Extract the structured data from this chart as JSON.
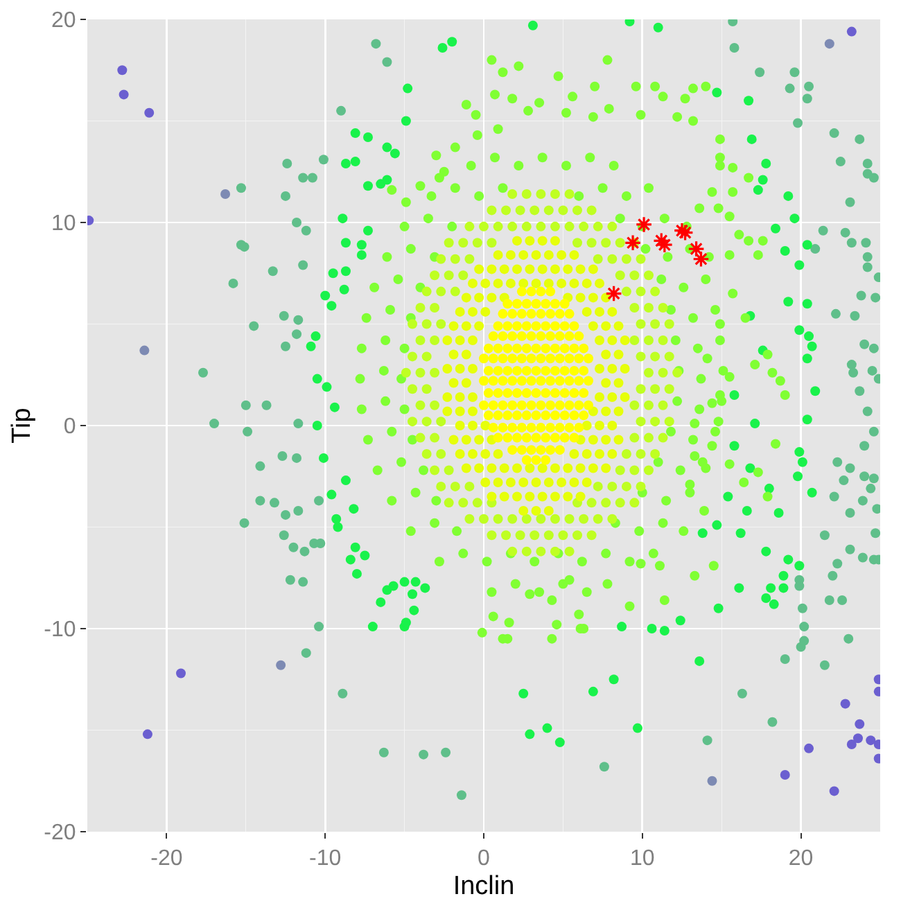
{
  "chart_data": {
    "type": "scatter",
    "xlabel": "Inclin",
    "ylabel": "Tip",
    "xlim": [
      -25,
      25
    ],
    "ylim": [
      -20,
      20
    ],
    "xticks": [
      -20,
      -10,
      0,
      10,
      20
    ],
    "yticks": [
      -20,
      -10,
      0,
      10,
      20
    ],
    "grid": true,
    "marker": "circle",
    "series": [
      {
        "color": "#5fbf8a",
        "x": [
          -6.8,
          -6.1,
          -9.0,
          -12.4,
          -11.4,
          -10.8,
          -10.1,
          -15.3,
          -12.5,
          -11.8,
          -11.2,
          -15.3,
          -15.1,
          -13.3,
          -11.4,
          -15.8,
          -14.5,
          -12.6,
          -11.7,
          -11.8,
          -12.5,
          -17.7,
          -15.0,
          -13.7,
          -17.0,
          -14.9,
          -11.7,
          -14.1,
          -12.7,
          -11.8,
          -14.1,
          -13.2,
          -12.5,
          -11.7,
          -15.1,
          -12.6,
          -12.0,
          -11.3,
          -10.7,
          -10.3,
          -10.4,
          -12.2,
          -11.4,
          -10.4,
          -11.2,
          -8.9,
          -6.3,
          -3.8,
          -2.4,
          -1.4,
          16.3,
          18.2,
          14.1,
          7.6,
          21.5,
          23.0,
          19.0,
          20.0,
          20.2,
          20.2,
          20.1,
          21.8,
          22.6,
          22.0,
          22.3,
          19.9,
          19.9,
          24.6,
          24.9,
          23.9,
          17.4,
          19.6,
          19.3,
          20.5,
          20.4,
          19.8,
          22.1,
          23.7,
          22.5,
          24.2,
          24.2,
          24.6,
          23.1,
          22.8,
          23.2,
          24.1,
          24.2,
          24.2,
          24.9,
          21.4,
          20.9,
          15.8,
          15.7,
          24.0,
          24.6,
          23.2,
          23.3,
          24.5,
          24.9,
          22.2,
          23.4,
          23.8,
          24.7,
          23.7,
          24.2,
          24.6,
          24.0,
          22.3,
          23.1,
          22.7,
          24.0,
          24.4,
          22.1,
          23.1,
          23.9,
          24.6,
          24.8,
          21.5,
          23.1,
          24.7
        ],
        "values": [
          18.8,
          17.9,
          15.5,
          12.9,
          12.2,
          12.2,
          13.1,
          11.7,
          11.3,
          10.0,
          9.6,
          8.9,
          8.8,
          7.6,
          7.9,
          7.0,
          4.9,
          5.4,
          5.2,
          4.5,
          3.9,
          2.6,
          1.0,
          1.0,
          0.1,
          -0.3,
          0.1,
          -2.0,
          -1.5,
          -1.6,
          -3.7,
          -3.8,
          -4.4,
          -4.2,
          -4.8,
          -5.4,
          -6.0,
          -6.2,
          -5.8,
          -5.8,
          -3.7,
          -7.6,
          -7.7,
          -9.9,
          -11.2,
          -13.2,
          -16.1,
          -16.2,
          -16.1,
          -18.2,
          -13.2,
          -14.6,
          -15.5,
          -16.8,
          -11.8,
          -10.5,
          -11.5,
          -10.9,
          -10.6,
          -9.9,
          -9.0,
          -8.6,
          -8.6,
          -7.4,
          -6.8,
          -7.6,
          -7.9,
          -6.6,
          -6.6,
          -6.5,
          17.4,
          17.4,
          16.6,
          16.7,
          16.1,
          14.9,
          14.4,
          14.1,
          13.0,
          12.9,
          12.4,
          12.2,
          11.0,
          9.5,
          9.0,
          9.0,
          8.3,
          7.8,
          7.3,
          9.6,
          8.7,
          18.6,
          19.9,
          4.0,
          3.8,
          3.0,
          2.6,
          2.7,
          2.3,
          5.5,
          5.4,
          6.4,
          6.3,
          1.7,
          0.7,
          -0.3,
          -1.0,
          -1.8,
          -2.1,
          -2.7,
          -2.5,
          -3.1,
          -3.5,
          -4.3,
          -3.7,
          -2.6,
          -4.1,
          -5.4,
          -6.1,
          -5.3
        ]
      },
      {
        "color": "#7d8ab3",
        "x": [
          -21.4,
          -12.8,
          14.4,
          21.8,
          -16.3
        ],
        "values": [
          3.7,
          -11.8,
          -17.5,
          18.8,
          11.4
        ]
      },
      {
        "color": "#6b5fd0",
        "x": [
          -22.8,
          -22.7,
          -21.1,
          -24.9,
          -19.1,
          -21.2,
          22.8,
          23.7,
          23.2,
          23.6,
          24.4,
          24.9,
          20.5,
          19.0,
          22.1,
          23.2,
          24.9,
          24.9,
          24.9
        ],
        "values": [
          17.5,
          16.3,
          15.4,
          10.1,
          -12.2,
          -15.2,
          -13.7,
          -14.7,
          -15.7,
          -15.4,
          -15.5,
          -16.4,
          -15.9,
          -17.2,
          -18.0,
          19.4,
          -12.5,
          -13.1,
          -15.7
        ]
      },
      {
        "color": "#19f24b",
        "x": [
          -2.6,
          -2.0,
          -4.8,
          -4.9,
          -8.1,
          -7.3,
          -6.1,
          -5.6,
          -8.7,
          -8.1,
          -8.9,
          -8.7,
          -7.7,
          -7.7,
          -9.5,
          -8.7,
          -7.3,
          -6.5,
          -6.1,
          -7.3,
          -10.0,
          -9.6,
          -8.8,
          -10.6,
          -10.9,
          -10.5,
          -9.9,
          -10.5,
          -10.1,
          -9.4,
          -9.6,
          -9.3,
          -9.2,
          -8.2,
          -8.1,
          -7.5,
          -8.7,
          -8.4,
          -8.0,
          -6.5,
          -6.1,
          -5.7,
          -5.0,
          -4.5,
          -4.3,
          -4.4,
          -7.0,
          -5.0,
          -4.9,
          -3.7,
          2.5,
          4.0,
          2.9,
          4.8,
          6.9,
          8.2,
          9.7,
          13.6,
          14.8,
          12.4,
          11.4,
          10.6,
          8.7,
          16.1,
          17.8,
          18.1,
          18.3,
          18.9,
          18.9,
          19.2,
          19.9,
          14.7,
          16.9,
          17.8,
          17.6,
          19.2,
          19.6,
          18.4,
          19.0,
          19.9,
          9.2,
          11.0,
          3.1,
          16.7,
          17.3,
          20.4,
          20.4,
          19.2,
          20.5,
          19.9,
          20.7,
          20.4,
          20.9,
          20.4,
          19.9,
          20.1,
          19.8,
          20.7,
          17.8,
          18.6,
          16.8,
          17.6,
          15.8,
          17.1,
          15.8,
          16.8,
          18.0,
          16.6,
          15.4,
          14.7,
          16.2,
          13.8
        ],
        "values": [
          18.6,
          18.9,
          16.6,
          15.0,
          14.4,
          14.2,
          13.7,
          13.4,
          12.9,
          13.0,
          10.2,
          9.0,
          8.9,
          8.4,
          7.5,
          7.6,
          11.8,
          11.9,
          12.1,
          9.6,
          6.4,
          5.9,
          6.7,
          4.4,
          3.9,
          2.3,
          1.9,
          0.0,
          -1.6,
          0.9,
          -3.4,
          -4.6,
          -5.0,
          -4.1,
          -6.0,
          -6.4,
          -2.7,
          -6.6,
          -7.3,
          -8.7,
          -8.1,
          -7.9,
          -7.7,
          -8.3,
          -7.7,
          -9.1,
          -9.9,
          -9.9,
          -9.7,
          -8.0,
          -13.2,
          -14.9,
          -15.2,
          -15.6,
          -13.1,
          -12.5,
          -14.9,
          -11.6,
          -9.0,
          -9.6,
          -10.1,
          -10.0,
          -9.9,
          -8.0,
          -8.5,
          -8.0,
          -8.8,
          -8.0,
          -7.4,
          -6.6,
          -6.9,
          16.4,
          14.1,
          12.9,
          12.1,
          11.3,
          10.2,
          9.7,
          8.6,
          7.9,
          19.9,
          19.6,
          19.7,
          16.0,
          11.6,
          8.9,
          6.0,
          6.1,
          4.4,
          4.7,
          3.9,
          3.3,
          1.7,
          0.3,
          -1.3,
          -1.8,
          -2.5,
          -3.3,
          -6.2,
          -4.3,
          5.4,
          3.7,
          1.5,
          0.1,
          -1.0,
          -2.1,
          -3.1,
          -4.2,
          -3.5,
          -4.9,
          -5.3,
          -5.3
        ]
      },
      {
        "color": "#80ff33",
        "x": [
          0.5,
          2.0,
          3.5,
          5.0,
          6.5,
          7.8,
          -2.8,
          -1.3,
          0.2,
          1.7,
          3.2,
          4.7,
          6.2,
          7.7,
          9.2,
          10.7,
          -4.6,
          -3.1,
          -1.7,
          8.3,
          9.8,
          11.3,
          12.6,
          -5.8,
          -4.3,
          -3.0,
          10.0,
          11.5,
          13.0,
          -6.7,
          -5.2,
          -3.8,
          11.0,
          12.4,
          13.8,
          -7.3,
          -5.8,
          -4.5,
          11.8,
          13.2,
          14.6,
          -7.7,
          -6.2,
          -5.0,
          12.2,
          13.6,
          15.0,
          -7.8,
          -6.3,
          -5.2,
          12.3,
          13.7,
          15.1,
          -7.7,
          -6.2,
          -5.0,
          12.1,
          13.5,
          14.9,
          -7.4,
          -5.9,
          -4.6,
          11.8,
          13.2,
          14.6,
          -6.9,
          -5.4,
          -4.0,
          11.2,
          12.6,
          14.0,
          -6.1,
          -4.6,
          -3.1,
          10.2,
          11.6,
          13.0,
          14.2,
          -5.0,
          -3.5,
          -2.0,
          8.6,
          10.0,
          11.4,
          12.8,
          -3.3,
          -1.8,
          -0.3,
          1.2,
          6.0,
          7.5,
          9.0,
          10.4,
          -0.8,
          0.7,
          2.2,
          3.7,
          5.2,
          6.7,
          8.2,
          0.5,
          2.2,
          1.2,
          7.8,
          4.7,
          7.0,
          9.6,
          10.8,
          13.2,
          14.0,
          0.7,
          1.8,
          3.5,
          5.6,
          12.7,
          11.3,
          2.8,
          5.2,
          7.9,
          9.9,
          12.2,
          0.9,
          6.9,
          14.9,
          14.9,
          15.7,
          -1.1,
          -0.5,
          -0.4,
          -1.8,
          -3.0,
          -2.5,
          -2.8,
          -4.9,
          -4.0,
          -5.8,
          14.1,
          15.5,
          14.9,
          14.4,
          14.8,
          13.3,
          14.4,
          13.3,
          14.0,
          13.0,
          13.9,
          15.7,
          14.9,
          16.5,
          17.9,
          17.1,
          18.2,
          18.7,
          19.0,
          18.4,
          17.3,
          16.4,
          15.5,
          17.9,
          13.2,
          14.9,
          15.7,
          16.7,
          14.4,
          13.6,
          14.8,
          15.5,
          16.1,
          16.7,
          17.6,
          15.5,
          17.3,
          1.2,
          1.5,
          4.3,
          6.1,
          6.3,
          0.6,
          1.6,
          4.6,
          6.0,
          -0.1,
          9.9,
          11.1,
          11.4,
          13.3,
          14.5,
          9.2,
          5.4,
          2.9,
          4.3
        ],
        "values": [
          -8.2,
          -7.8,
          -8.2,
          -7.8,
          -8.2,
          -7.8,
          -6.7,
          -6.3,
          -6.7,
          -6.3,
          -6.7,
          -6.3,
          -6.7,
          -6.3,
          -6.7,
          -6.3,
          -5.2,
          -4.8,
          -5.2,
          -4.8,
          -5.2,
          -4.8,
          -5.2,
          -3.7,
          -3.3,
          -3.7,
          -3.3,
          -3.7,
          -3.3,
          -2.2,
          -1.8,
          -2.2,
          -1.8,
          -2.2,
          -1.8,
          -0.7,
          -0.3,
          -0.7,
          -0.3,
          -0.7,
          -0.3,
          0.8,
          1.2,
          0.8,
          1.2,
          0.8,
          1.2,
          2.3,
          2.7,
          2.3,
          2.7,
          2.3,
          2.7,
          3.8,
          4.2,
          3.8,
          4.2,
          3.8,
          4.2,
          5.3,
          5.7,
          5.3,
          5.7,
          5.3,
          5.7,
          6.8,
          7.2,
          6.8,
          7.2,
          6.8,
          7.2,
          8.3,
          8.7,
          8.3,
          8.7,
          8.3,
          8.7,
          8.3,
          9.8,
          10.2,
          9.8,
          10.2,
          9.8,
          10.2,
          9.8,
          11.3,
          11.7,
          11.3,
          11.7,
          11.3,
          11.7,
          11.3,
          11.7,
          12.8,
          13.2,
          12.8,
          13.2,
          12.8,
          13.2,
          12.8,
          18.0,
          17.7,
          17.4,
          18.0,
          17.2,
          16.7,
          16.7,
          16.7,
          16.6,
          16.7,
          16.3,
          16.1,
          15.9,
          16.2,
          16.1,
          16.2,
          15.5,
          15.4,
          15.6,
          15.3,
          15.2,
          14.6,
          15.2,
          14.1,
          13.2,
          12.7,
          15.8,
          15.3,
          14.3,
          13.7,
          13.3,
          12.5,
          12.2,
          11.0,
          11.8,
          11.6,
          3.3,
          2.4,
          1.5,
          1.1,
          0.2,
          0.1,
          -1.0,
          -1.5,
          -2.1,
          -2.9,
          -4.2,
          6.5,
          5.0,
          5.3,
          3.5,
          3.0,
          2.6,
          2.2,
          1.5,
          -0.9,
          -2.3,
          -2.8,
          -1.9,
          -3.5,
          15.0,
          12.8,
          11.5,
          12.2,
          11.5,
          10.7,
          10.7,
          10.3,
          9.4,
          9.1,
          9.1,
          8.4,
          8.4,
          -10.5,
          -10.5,
          -10.5,
          -10.0,
          -10.0,
          -9.4,
          -9.7,
          -9.8,
          -9.3,
          -10.2,
          -6.8,
          -6.9,
          -8.6,
          -7.4,
          -6.9,
          -8.9,
          -7.6,
          -8.3,
          -8.6
        ]
      },
      {
        "color": "#bfff22",
        "x": [
          1.8,
          2.7,
          3.6,
          4.5,
          5.4,
          0.5,
          1.4,
          2.3,
          3.2,
          4.1,
          5.0,
          5.9,
          6.8,
          -0.9,
          0.0,
          0.9,
          1.8,
          2.7,
          3.6,
          4.5,
          5.4,
          6.3,
          7.2,
          8.1,
          -2.2,
          -1.3,
          -0.4,
          0.5,
          5.9,
          6.8,
          7.7,
          8.6,
          9.5,
          -2.7,
          -1.8,
          -0.9,
          7.2,
          8.1,
          9.0,
          9.9,
          -3.1,
          -2.2,
          8.6,
          9.5,
          10.4,
          -3.6,
          -2.7,
          9.0,
          9.9,
          10.8,
          -4.0,
          -3.1,
          9.5,
          10.4,
          11.3,
          -4.5,
          -3.6,
          -2.7,
          9.9,
          10.8,
          11.7,
          -4.0,
          -3.1,
          9.5,
          10.4,
          11.3,
          -4.5,
          -3.6,
          9.9,
          10.8,
          11.7,
          -4.9,
          -4.0,
          -3.1,
          10.4,
          11.3,
          12.2,
          -4.5,
          -3.6,
          9.9,
          10.8,
          11.7,
          -4.0,
          -3.1,
          9.5,
          10.4,
          11.3,
          -4.5,
          -3.6,
          -2.7,
          9.9,
          10.8,
          11.7,
          -4.0,
          -3.1,
          9.5,
          10.4,
          11.3,
          -3.6,
          -2.7,
          -1.8,
          9.0,
          9.9,
          10.8,
          -3.1,
          -2.2,
          -1.3,
          8.6,
          9.5,
          10.4,
          -2.7,
          -1.8,
          -0.9,
          7.2,
          8.1,
          9.0,
          9.9,
          -2.2,
          -1.3,
          -0.4,
          0.5,
          5.9,
          6.8,
          7.7,
          8.6,
          9.5,
          -0.9,
          0.0,
          0.9,
          1.8,
          2.7,
          3.6,
          4.5,
          5.4,
          6.3,
          7.2,
          8.1,
          0.5,
          1.4,
          2.3,
          3.2,
          4.1,
          5.0,
          5.9,
          6.8,
          1.8,
          2.7,
          3.6,
          4.5,
          5.4
        ],
        "values": [
          -6.2,
          -6.2,
          -6.2,
          -6.2,
          -6.2,
          -5.4,
          -5.4,
          -5.4,
          -5.4,
          -5.4,
          -5.4,
          -5.4,
          -5.4,
          -4.6,
          -4.6,
          -4.6,
          -4.6,
          -4.6,
          -4.6,
          -4.6,
          -4.6,
          -4.6,
          -4.6,
          -4.6,
          -3.8,
          -3.8,
          -3.8,
          -3.8,
          -3.8,
          -3.8,
          -3.8,
          -3.8,
          -3.8,
          -3.0,
          -3.0,
          -3.0,
          -3.0,
          -3.0,
          -3.0,
          -3.0,
          -2.2,
          -2.2,
          -2.2,
          -2.2,
          -2.2,
          -1.4,
          -1.4,
          -1.4,
          -1.4,
          -1.4,
          -0.6,
          -0.6,
          -0.6,
          -0.6,
          -0.6,
          0.2,
          0.2,
          0.2,
          0.2,
          0.2,
          0.2,
          1.0,
          1.0,
          1.0,
          1.0,
          1.0,
          1.8,
          1.8,
          1.8,
          1.8,
          1.8,
          2.6,
          2.6,
          2.6,
          2.6,
          2.6,
          2.6,
          3.4,
          3.4,
          3.4,
          3.4,
          3.4,
          4.2,
          4.2,
          4.2,
          4.2,
          4.2,
          5.0,
          5.0,
          5.0,
          5.0,
          5.0,
          5.0,
          5.8,
          5.8,
          5.8,
          5.8,
          5.8,
          6.6,
          6.6,
          6.6,
          6.6,
          6.6,
          6.6,
          7.4,
          7.4,
          7.4,
          7.4,
          7.4,
          7.4,
          8.2,
          8.2,
          8.2,
          8.2,
          8.2,
          8.2,
          8.2,
          9.0,
          9.0,
          9.0,
          9.0,
          9.0,
          9.0,
          9.0,
          9.0,
          9.0,
          9.8,
          9.8,
          9.8,
          9.8,
          9.8,
          9.8,
          9.8,
          9.8,
          9.8,
          9.8,
          9.8,
          10.6,
          10.6,
          10.6,
          10.6,
          10.6,
          10.6,
          10.6,
          10.6,
          11.4,
          11.4,
          11.4,
          11.4,
          11.4
        ]
      },
      {
        "color": "#e6ff0a",
        "x": [
          2.5,
          3.3,
          4.1,
          0.5,
          1.3,
          2.1,
          2.9,
          3.7,
          4.5,
          5.3,
          6.1,
          0.1,
          0.9,
          1.7,
          2.5,
          3.3,
          4.1,
          4.9,
          5.7,
          6.5,
          -1.1,
          -0.3,
          0.5,
          1.3,
          2.1,
          2.9,
          3.7,
          4.5,
          5.3,
          6.1,
          6.9,
          7.7,
          -1.5,
          -0.7,
          0.1,
          0.9,
          5.7,
          6.5,
          7.3,
          8.1,
          -1.9,
          -1.1,
          -0.3,
          0.5,
          6.1,
          6.9,
          7.7,
          8.5,
          -1.5,
          -0.7,
          0.1,
          6.5,
          7.3,
          8.1,
          -2.3,
          -1.5,
          -0.7,
          6.9,
          7.7,
          8.5,
          -2.3,
          -1.5,
          -0.7,
          7.3,
          8.1,
          8.9,
          -1.9,
          -1.1,
          7.7,
          8.5,
          -2.3,
          -1.5,
          -0.7,
          7.3,
          8.1,
          8.9,
          -1.9,
          -1.1,
          7.7,
          8.5,
          -2.3,
          -1.5,
          -0.7,
          7.3,
          8.1,
          8.9,
          -1.9,
          -1.1,
          -0.3,
          6.9,
          7.7,
          8.5,
          -1.5,
          -0.7,
          0.1,
          6.5,
          7.3,
          8.1,
          -1.1,
          -0.3,
          0.5,
          1.3,
          5.3,
          6.1,
          6.9,
          7.7,
          -0.7,
          0.1,
          0.9,
          1.7,
          2.5,
          3.3,
          4.1,
          4.9,
          5.7,
          6.5,
          7.3,
          -0.3,
          0.5,
          1.3,
          2.1,
          2.9,
          3.7,
          4.5,
          5.3,
          6.1,
          6.9,
          0.9,
          1.7,
          2.5,
          3.3,
          4.1,
          4.9,
          5.7,
          2.1,
          2.9,
          3.7,
          4.5
        ],
        "values": [
          -4.2,
          -4.2,
          -4.2,
          -3.5,
          -3.5,
          -3.5,
          -3.5,
          -3.5,
          -3.5,
          -3.5,
          -3.5,
          -2.8,
          -2.8,
          -2.8,
          -2.8,
          -2.8,
          -2.8,
          -2.8,
          -2.8,
          -2.8,
          -2.1,
          -2.1,
          -2.1,
          -2.1,
          -2.1,
          -2.1,
          -2.1,
          -2.1,
          -2.1,
          -2.1,
          -2.1,
          -2.1,
          -1.4,
          -1.4,
          -1.4,
          -1.4,
          -1.4,
          -1.4,
          -1.4,
          -1.4,
          -0.7,
          -0.7,
          -0.7,
          -0.7,
          -0.7,
          -0.7,
          -0.7,
          -0.7,
          0.0,
          0.0,
          0.0,
          0.0,
          0.0,
          0.0,
          0.7,
          0.7,
          0.7,
          0.7,
          0.7,
          0.7,
          1.4,
          1.4,
          1.4,
          1.4,
          1.4,
          1.4,
          2.1,
          2.1,
          2.1,
          2.1,
          2.8,
          2.8,
          2.8,
          2.8,
          2.8,
          2.8,
          3.5,
          3.5,
          3.5,
          3.5,
          4.2,
          4.2,
          4.2,
          4.2,
          4.2,
          4.2,
          4.9,
          4.9,
          4.9,
          4.9,
          4.9,
          4.9,
          5.6,
          5.6,
          5.6,
          5.6,
          5.6,
          5.6,
          6.3,
          6.3,
          6.3,
          6.3,
          6.3,
          6.3,
          6.3,
          6.3,
          7.0,
          7.0,
          7.0,
          7.0,
          7.0,
          7.0,
          7.0,
          7.0,
          7.0,
          7.0,
          7.0,
          7.7,
          7.7,
          7.7,
          7.7,
          7.7,
          7.7,
          7.7,
          7.7,
          7.7,
          7.7,
          8.4,
          8.4,
          8.4,
          8.4,
          8.4,
          8.4,
          8.4,
          9.1,
          9.1,
          9.1,
          9.1
        ]
      },
      {
        "color": "#ffff00",
        "x": [
          2.7,
          3.3,
          3.9,
          1.8,
          2.4,
          3.0,
          3.6,
          4.2,
          4.8,
          0.9,
          1.5,
          2.1,
          2.7,
          3.3,
          3.9,
          4.5,
          5.1,
          5.7,
          0.6,
          1.2,
          1.8,
          2.4,
          3.0,
          3.6,
          4.2,
          4.8,
          5.4,
          6.0,
          0.3,
          0.9,
          1.5,
          2.1,
          2.7,
          3.3,
          3.9,
          4.5,
          5.1,
          5.7,
          6.3,
          0.0,
          0.6,
          1.2,
          1.8,
          2.4,
          3.0,
          3.6,
          4.2,
          4.8,
          5.4,
          6.0,
          6.6,
          0.3,
          0.9,
          1.5,
          2.1,
          2.7,
          3.3,
          3.9,
          4.5,
          5.1,
          5.7,
          6.3,
          0.0,
          0.6,
          1.2,
          1.8,
          2.4,
          3.0,
          3.6,
          4.2,
          4.8,
          5.4,
          6.0,
          6.6,
          0.3,
          0.9,
          1.5,
          2.1,
          2.7,
          3.3,
          3.9,
          4.5,
          5.1,
          5.7,
          6.3,
          0.0,
          0.6,
          1.2,
          1.8,
          2.4,
          3.0,
          3.6,
          4.2,
          4.8,
          5.4,
          6.0,
          6.6,
          0.3,
          0.9,
          1.5,
          2.1,
          2.7,
          3.3,
          3.9,
          4.5,
          5.1,
          5.7,
          6.3,
          0.6,
          1.2,
          1.8,
          2.4,
          3.0,
          3.6,
          4.2,
          4.8,
          5.4,
          6.0,
          0.9,
          1.5,
          2.1,
          2.7,
          3.3,
          3.9,
          4.5,
          5.1,
          5.7,
          1.2,
          1.8,
          2.4,
          3.0,
          3.6,
          4.2,
          4.8,
          5.4,
          1.5,
          2.1,
          2.7,
          3.3,
          3.9,
          4.5,
          5.1,
          2.4,
          3.0,
          3.6,
          4.2
        ],
        "values": [
          -1.7,
          -1.7,
          -1.7,
          -1.2,
          -1.2,
          -1.2,
          -1.2,
          -1.2,
          -1.2,
          -0.6,
          -0.6,
          -0.6,
          -0.6,
          -0.6,
          -0.6,
          -0.6,
          -0.6,
          -0.6,
          -0.1,
          -0.1,
          -0.1,
          -0.1,
          -0.1,
          -0.1,
          -0.1,
          -0.1,
          -0.1,
          -0.1,
          0.5,
          0.5,
          0.5,
          0.5,
          0.5,
          0.5,
          0.5,
          0.5,
          0.5,
          0.5,
          0.5,
          1.0,
          1.0,
          1.0,
          1.0,
          1.0,
          1.0,
          1.0,
          1.0,
          1.0,
          1.0,
          1.0,
          1.0,
          1.6,
          1.6,
          1.6,
          1.6,
          1.6,
          1.6,
          1.6,
          1.6,
          1.6,
          1.6,
          1.6,
          2.2,
          2.2,
          2.2,
          2.2,
          2.2,
          2.2,
          2.2,
          2.2,
          2.2,
          2.2,
          2.2,
          2.2,
          2.7,
          2.7,
          2.7,
          2.7,
          2.7,
          2.7,
          2.7,
          2.7,
          2.7,
          2.7,
          2.7,
          3.3,
          3.3,
          3.3,
          3.3,
          3.3,
          3.3,
          3.3,
          3.3,
          3.3,
          3.3,
          3.3,
          3.3,
          3.8,
          3.8,
          3.8,
          3.8,
          3.8,
          3.8,
          3.8,
          3.8,
          3.8,
          3.8,
          3.8,
          4.4,
          4.4,
          4.4,
          4.4,
          4.4,
          4.4,
          4.4,
          4.4,
          4.4,
          4.4,
          4.9,
          4.9,
          4.9,
          4.9,
          4.9,
          4.9,
          4.9,
          4.9,
          4.9,
          5.5,
          5.5,
          5.5,
          5.5,
          5.5,
          5.5,
          5.5,
          5.5,
          6.0,
          6.0,
          6.0,
          6.0,
          6.0,
          6.0,
          6.0,
          6.6,
          6.6,
          6.6,
          6.6
        ]
      },
      {
        "color": "#ff0000",
        "marker": "cross",
        "x": [
          10.1,
          9.4,
          11.2,
          11.4,
          12.5,
          12.7,
          13.4,
          13.7,
          8.2
        ],
        "values": [
          9.9,
          9.0,
          9.1,
          8.9,
          9.6,
          9.5,
          8.7,
          8.2,
          6.5
        ]
      }
    ]
  }
}
